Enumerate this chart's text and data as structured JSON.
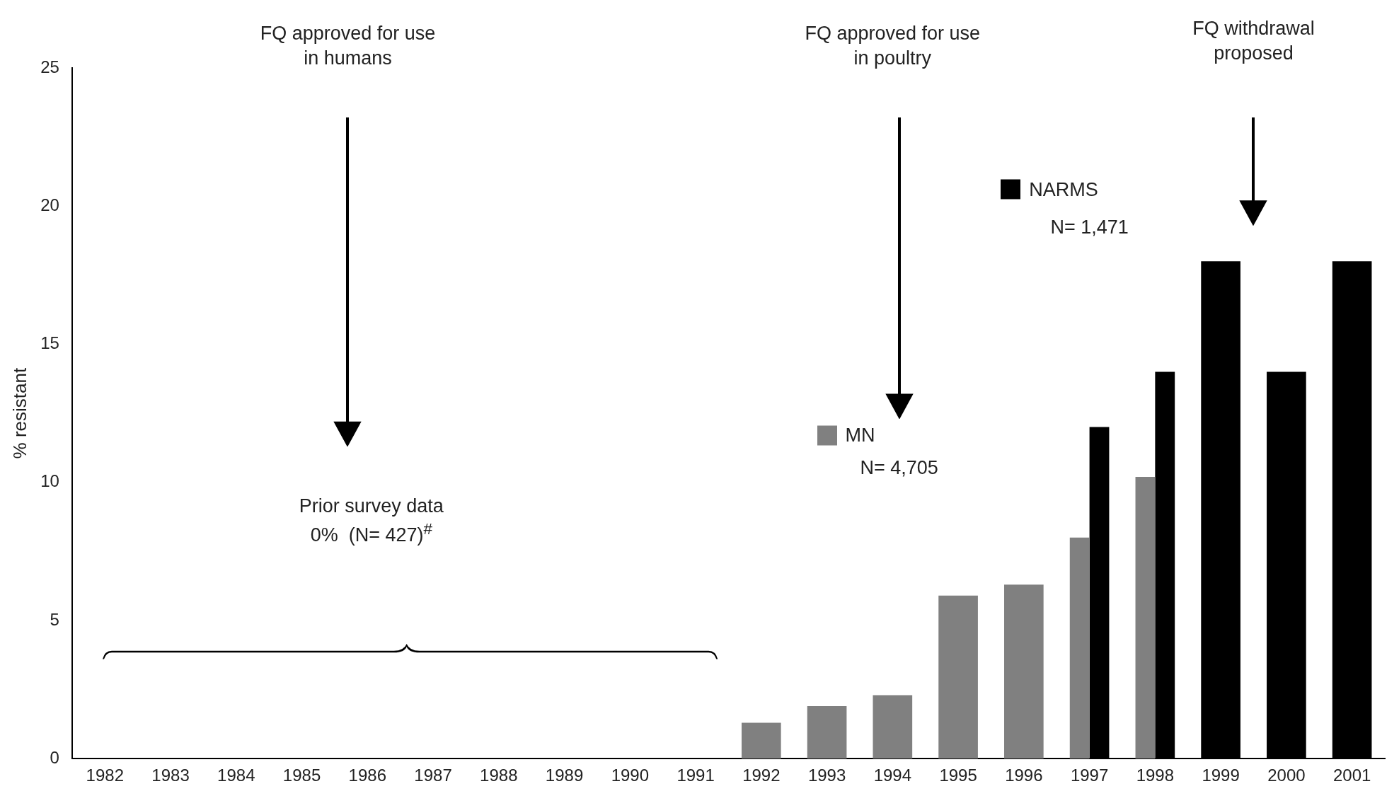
{
  "chart_data": {
    "type": "bar",
    "ylabel": "% resistant",
    "categories": [
      "1982",
      "1983",
      "1984",
      "1985",
      "1986",
      "1987",
      "1988",
      "1989",
      "1990",
      "1991",
      "1992",
      "1993",
      "1994",
      "1995",
      "1996",
      "1997",
      "1998",
      "1999",
      "2000",
      "2001"
    ],
    "series": [
      {
        "name": "MN",
        "color": "#808080",
        "values": [
          null,
          null,
          null,
          null,
          null,
          null,
          null,
          null,
          null,
          null,
          1.3,
          1.9,
          2.3,
          5.9,
          6.3,
          8.0,
          10.2,
          null,
          null,
          null
        ]
      },
      {
        "name": "NARMS",
        "color": "#000000",
        "values": [
          null,
          null,
          null,
          null,
          null,
          null,
          null,
          null,
          null,
          null,
          null,
          null,
          null,
          null,
          null,
          12,
          14,
          18,
          14,
          18
        ]
      }
    ],
    "ylim": [
      0,
      25
    ],
    "yticks": [
      0,
      5,
      10,
      15,
      20,
      25
    ],
    "grid": false,
    "legend": "top right",
    "annotations": [
      "FQ approved for use\nin humans",
      "FQ approved for use\nin poultry",
      "FQ withdrawal\nproposed",
      "Prior survey data\n0%  (N= 427)$^{#}$",
      "N= 4,705",
      "N= 1,471"
    ]
  }
}
